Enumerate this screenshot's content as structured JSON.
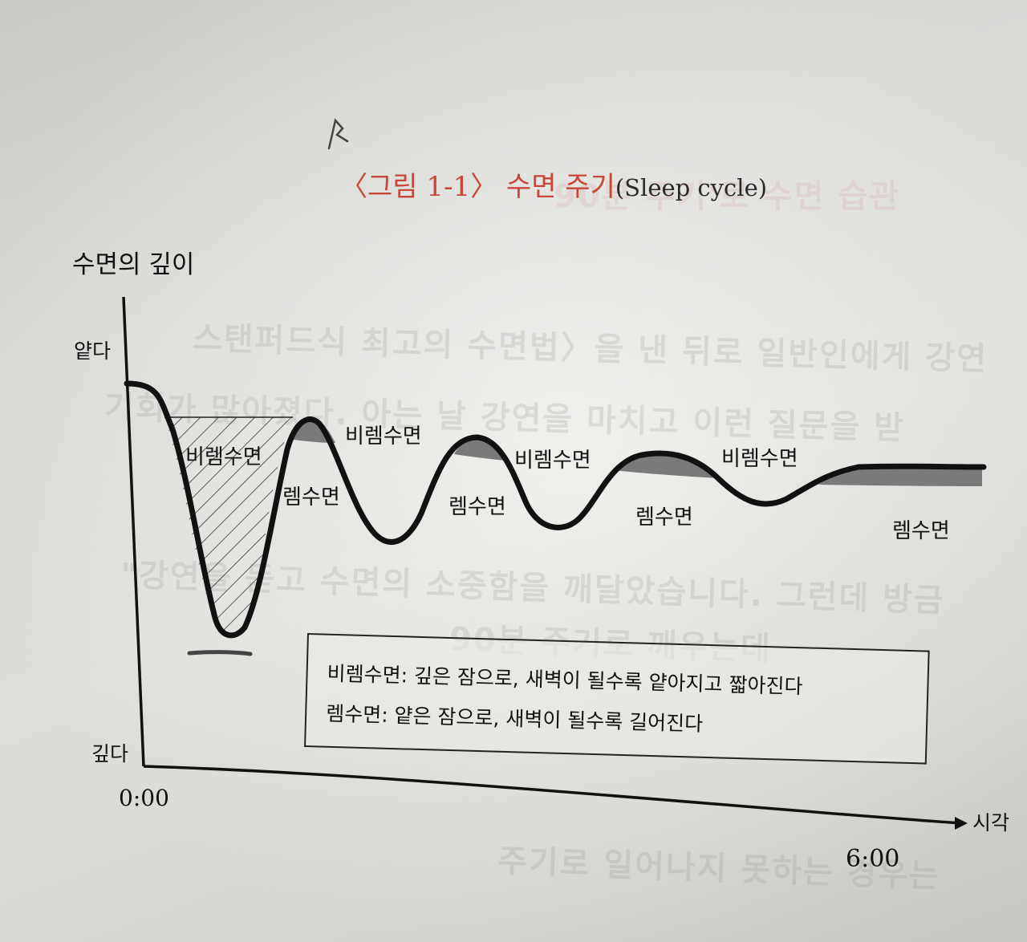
{
  "page": {
    "title_main": "〈그림 1-1〉 수면 주기",
    "title_en": "(Sleep cycle)"
  },
  "axes": {
    "y_label": "수면의 깊이",
    "y_top": "얕다",
    "y_bottom": "깊다",
    "x_label": "시각",
    "x_start": "0:00",
    "x_end": "6:00"
  },
  "stage_labels": {
    "nrem": "비렘수면",
    "rem": "렘수면"
  },
  "legend": {
    "line1": "비렘수면: 깊은 잠으로, 새벽이 될수록 얕아지고 짧아진다",
    "line2": "렘수면: 얕은 잠으로, 새벽이 될수록 길어진다"
  },
  "bleed_through": [
    "90분 주기'로 수면 습관",
    "스탠퍼드식 최고의 수면법〉을 낸 뒤로 일반인에게 강연",
    "기회가 많아졌다. 아는 날 강연을 마치고 이런 질문을 받",
    "\"강연을 듣고 수면의 소중함을 깨달았습니다. 그런데 방금",
    "90분 주기로 깨우는데",
    "주기로 일어나지 못하는 경우는"
  ],
  "colors": {
    "title": "#c8473a",
    "curve": "#111111",
    "rem_fill": "#7a7a7a",
    "paper": "#e6e7e3"
  }
}
